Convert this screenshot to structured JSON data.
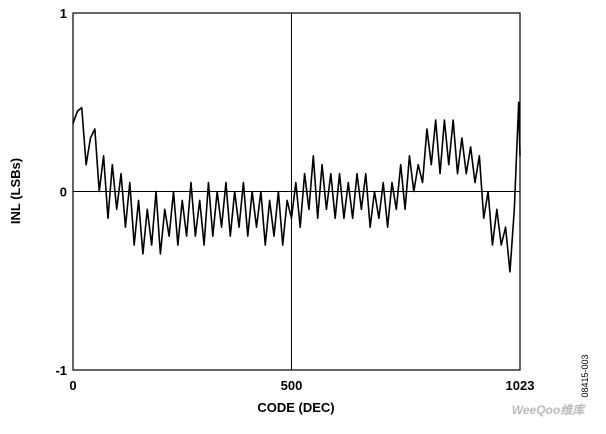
{
  "chart_data": {
    "type": "line",
    "xlabel": "CODE (DEC)",
    "ylabel": "INL (LSBs)",
    "note": "08415-003",
    "watermark": "WeeQoo维库",
    "x": [
      0,
      10,
      20,
      30,
      40,
      50,
      60,
      70,
      80,
      90,
      100,
      110,
      120,
      130,
      140,
      150,
      160,
      170,
      180,
      190,
      200,
      210,
      220,
      230,
      240,
      250,
      260,
      270,
      280,
      290,
      300,
      310,
      320,
      330,
      340,
      350,
      360,
      370,
      380,
      390,
      400,
      410,
      420,
      430,
      440,
      450,
      460,
      470,
      480,
      490,
      500,
      510,
      520,
      530,
      540,
      550,
      560,
      570,
      580,
      590,
      600,
      610,
      620,
      630,
      640,
      650,
      660,
      670,
      680,
      690,
      700,
      710,
      720,
      730,
      740,
      750,
      760,
      770,
      780,
      790,
      800,
      810,
      820,
      830,
      840,
      850,
      860,
      870,
      880,
      890,
      900,
      910,
      920,
      930,
      940,
      950,
      960,
      970,
      980,
      990,
      1000,
      1010,
      1020,
      1023
    ],
    "series": [
      {
        "name": "INL",
        "color": "#000000",
        "values": [
          0.38,
          0.45,
          0.47,
          0.15,
          0.3,
          0.35,
          0.0,
          0.2,
          -0.15,
          0.15,
          -0.1,
          0.1,
          -0.2,
          0.05,
          -0.3,
          -0.05,
          -0.35,
          -0.1,
          -0.3,
          0.0,
          -0.35,
          -0.1,
          -0.25,
          0.0,
          -0.3,
          -0.05,
          -0.25,
          0.05,
          -0.25,
          -0.05,
          -0.3,
          0.05,
          -0.25,
          0.0,
          -0.2,
          0.05,
          -0.25,
          0.0,
          -0.2,
          0.05,
          -0.25,
          0.0,
          -0.2,
          0.0,
          -0.3,
          -0.05,
          -0.25,
          0.0,
          -0.3,
          -0.05,
          -0.15,
          0.05,
          -0.2,
          0.1,
          -0.1,
          0.2,
          -0.15,
          0.15,
          -0.1,
          0.1,
          -0.15,
          0.1,
          -0.15,
          0.05,
          -0.15,
          0.1,
          -0.1,
          0.1,
          -0.2,
          0.0,
          -0.15,
          0.05,
          -0.2,
          0.05,
          -0.1,
          0.15,
          -0.1,
          0.2,
          0.0,
          0.15,
          0.05,
          0.35,
          0.15,
          0.4,
          0.1,
          0.4,
          0.15,
          0.4,
          0.1,
          0.3,
          0.1,
          0.25,
          0.05,
          0.2,
          -0.15,
          0.0,
          -0.3,
          -0.1,
          -0.3,
          -0.2,
          -0.45,
          -0.1,
          0.5,
          0.2
        ]
      }
    ],
    "xlim": [
      0,
      1023
    ],
    "ylim": [
      -1,
      1
    ],
    "xticks": [
      0,
      500,
      1023
    ],
    "yticks": [
      -1,
      0,
      1
    ],
    "center_lines": true
  }
}
